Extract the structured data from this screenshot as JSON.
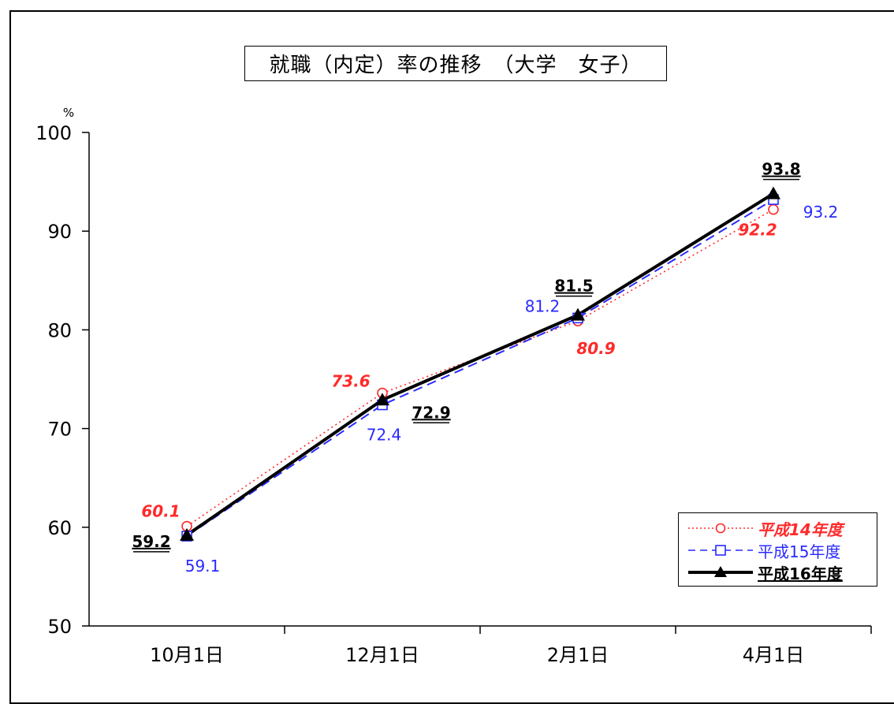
{
  "chart_data": {
    "type": "line",
    "title": "就職（内定）率の推移　（大学　女子）",
    "ylabel": "%",
    "ylim": [
      50,
      100
    ],
    "yticks": [
      50,
      60,
      70,
      80,
      90,
      100
    ],
    "categories": [
      "10月1日",
      "12月1日",
      "2月1日",
      "4月1日"
    ],
    "grid": false,
    "legend_position": "bottom-right",
    "series": [
      {
        "name": "平成14年度",
        "values": [
          60.1,
          73.6,
          80.9,
          92.2
        ],
        "color": "#ff2a2a",
        "line_style": "dotted",
        "marker": "circle",
        "labels": [
          "60.1",
          "73.6",
          "80.9",
          "92.2"
        ]
      },
      {
        "name": "平成15年度",
        "values": [
          59.1,
          72.4,
          81.2,
          93.2
        ],
        "color": "#2a2aff",
        "line_style": "dashed",
        "marker": "square",
        "labels": [
          "59.1",
          "72.4",
          "81.2",
          "93.2"
        ]
      },
      {
        "name": "平成16年度",
        "values": [
          59.2,
          72.9,
          81.5,
          93.8
        ],
        "color": "#000000",
        "line_style": "solid",
        "marker": "triangle",
        "labels": [
          "59.2",
          "72.9",
          "81.5",
          "93.8"
        ]
      }
    ]
  }
}
